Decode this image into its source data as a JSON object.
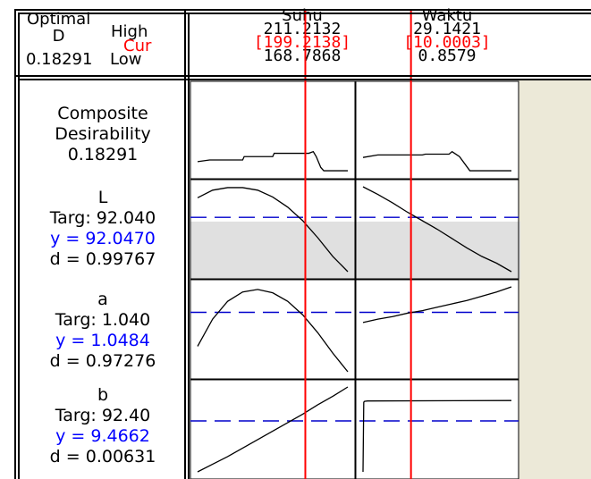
{
  "optimal": {
    "title_line1": "Optimal",
    "title_line2": "D",
    "value": "0.18291",
    "high_label": "High",
    "cur_label": "Cur",
    "low_label": "Low"
  },
  "factors": [
    {
      "name": "Suhu",
      "high": "211.2132",
      "cur": "[199.2138]",
      "low": "168.7868"
    },
    {
      "name": "Waktu",
      "high": "29.1421",
      "cur": "[10.0003]",
      "low": "0.8579"
    }
  ],
  "responses": [
    {
      "line1": "Composite",
      "line2": "Desirability",
      "line3": "0.18291",
      "line4": ""
    },
    {
      "line1": "L",
      "line2": "Targ: 92.040",
      "line3": "y = 92.0470",
      "line4": "d = 0.99767"
    },
    {
      "line1": "a",
      "line2": "Targ: 1.040",
      "line3": "y = 1.0484",
      "line4": "d = 0.97276"
    },
    {
      "line1": "b",
      "line2": "Targ: 92.40",
      "line3": "y = 9.4662",
      "line4": "d = 0.00631"
    }
  ],
  "colors": {
    "current_line": "#ff0000",
    "target_line": "#0000cc",
    "grid_bg": "#ece9d8",
    "shade": "#e0e0e0"
  },
  "chart_data": {
    "type": "line",
    "factors": [
      {
        "name": "Suhu",
        "low": 168.7868,
        "high": 211.2132,
        "current": 199.2138
      },
      {
        "name": "Waktu",
        "low": 0.8579,
        "high": 29.1421,
        "current": 10.0003
      }
    ],
    "series": [
      {
        "response": "Composite Desirability",
        "factor": "Suhu",
        "x": [
          0,
          0.08,
          0.3,
          0.31,
          0.5,
          0.51,
          0.74,
          0.77,
          0.79,
          0.82,
          0.84,
          1
        ],
        "y": [
          0.12,
          0.14,
          0.14,
          0.18,
          0.18,
          0.22,
          0.22,
          0.24,
          0.18,
          0.05,
          0.01,
          0.01
        ]
      },
      {
        "response": "Composite Desirability",
        "factor": "Waktu",
        "x": [
          0,
          0.1,
          0.4,
          0.42,
          0.58,
          0.6,
          0.65,
          0.72,
          1
        ],
        "y": [
          0.17,
          0.2,
          0.2,
          0.21,
          0.21,
          0.24,
          0.18,
          0.01,
          0.01
        ]
      },
      {
        "response": "L",
        "factor": "Suhu",
        "x": [
          0,
          0.1,
          0.2,
          0.3,
          0.4,
          0.5,
          0.6,
          0.7,
          0.8,
          0.9,
          1
        ],
        "y": [
          0.87,
          0.96,
          0.99,
          0.99,
          0.96,
          0.88,
          0.76,
          0.6,
          0.4,
          0.18,
          0.0
        ]
      },
      {
        "response": "L",
        "factor": "Waktu",
        "x": [
          0,
          0.1,
          0.2,
          0.3,
          0.4,
          0.5,
          0.6,
          0.7,
          0.8,
          0.9,
          1
        ],
        "y": [
          1.0,
          0.91,
          0.81,
          0.7,
          0.6,
          0.5,
          0.39,
          0.28,
          0.18,
          0.1,
          0.0
        ]
      },
      {
        "response": "a",
        "factor": "Suhu",
        "x": [
          0,
          0.1,
          0.2,
          0.3,
          0.4,
          0.5,
          0.6,
          0.7,
          0.8,
          0.9,
          1
        ],
        "y": [
          0.3,
          0.62,
          0.83,
          0.94,
          0.97,
          0.93,
          0.83,
          0.67,
          0.46,
          0.22,
          0.0
        ]
      },
      {
        "response": "a",
        "factor": "Waktu",
        "x": [
          0,
          0.1,
          0.2,
          0.3,
          0.4,
          0.5,
          0.6,
          0.7,
          0.8,
          0.9,
          1
        ],
        "y": [
          0.58,
          0.62,
          0.65,
          0.69,
          0.72,
          0.76,
          0.8,
          0.84,
          0.89,
          0.94,
          1.0
        ]
      },
      {
        "response": "b",
        "factor": "Suhu",
        "x": [
          0,
          0.1,
          0.2,
          0.3,
          0.4,
          0.5,
          0.6,
          0.7,
          0.8,
          0.9,
          1
        ],
        "y": [
          0.0,
          0.09,
          0.18,
          0.28,
          0.38,
          0.48,
          0.58,
          0.68,
          0.79,
          0.89,
          1.0
        ]
      },
      {
        "response": "b",
        "factor": "Waktu",
        "x": [
          0,
          0.005,
          0.01,
          0.03,
          1
        ],
        "y": [
          0.0,
          0.82,
          0.83,
          0.835,
          0.84
        ]
      }
    ],
    "targets": [
      {
        "response": "L",
        "target": 92.04,
        "level": 0.64
      },
      {
        "response": "a",
        "target": 1.04,
        "level": 0.7
      },
      {
        "response": "b",
        "target": 92.4,
        "level": 0.6
      }
    ],
    "shaded_ranges": [
      {
        "response": "L",
        "from": 0,
        "to": 0.59
      }
    ]
  }
}
